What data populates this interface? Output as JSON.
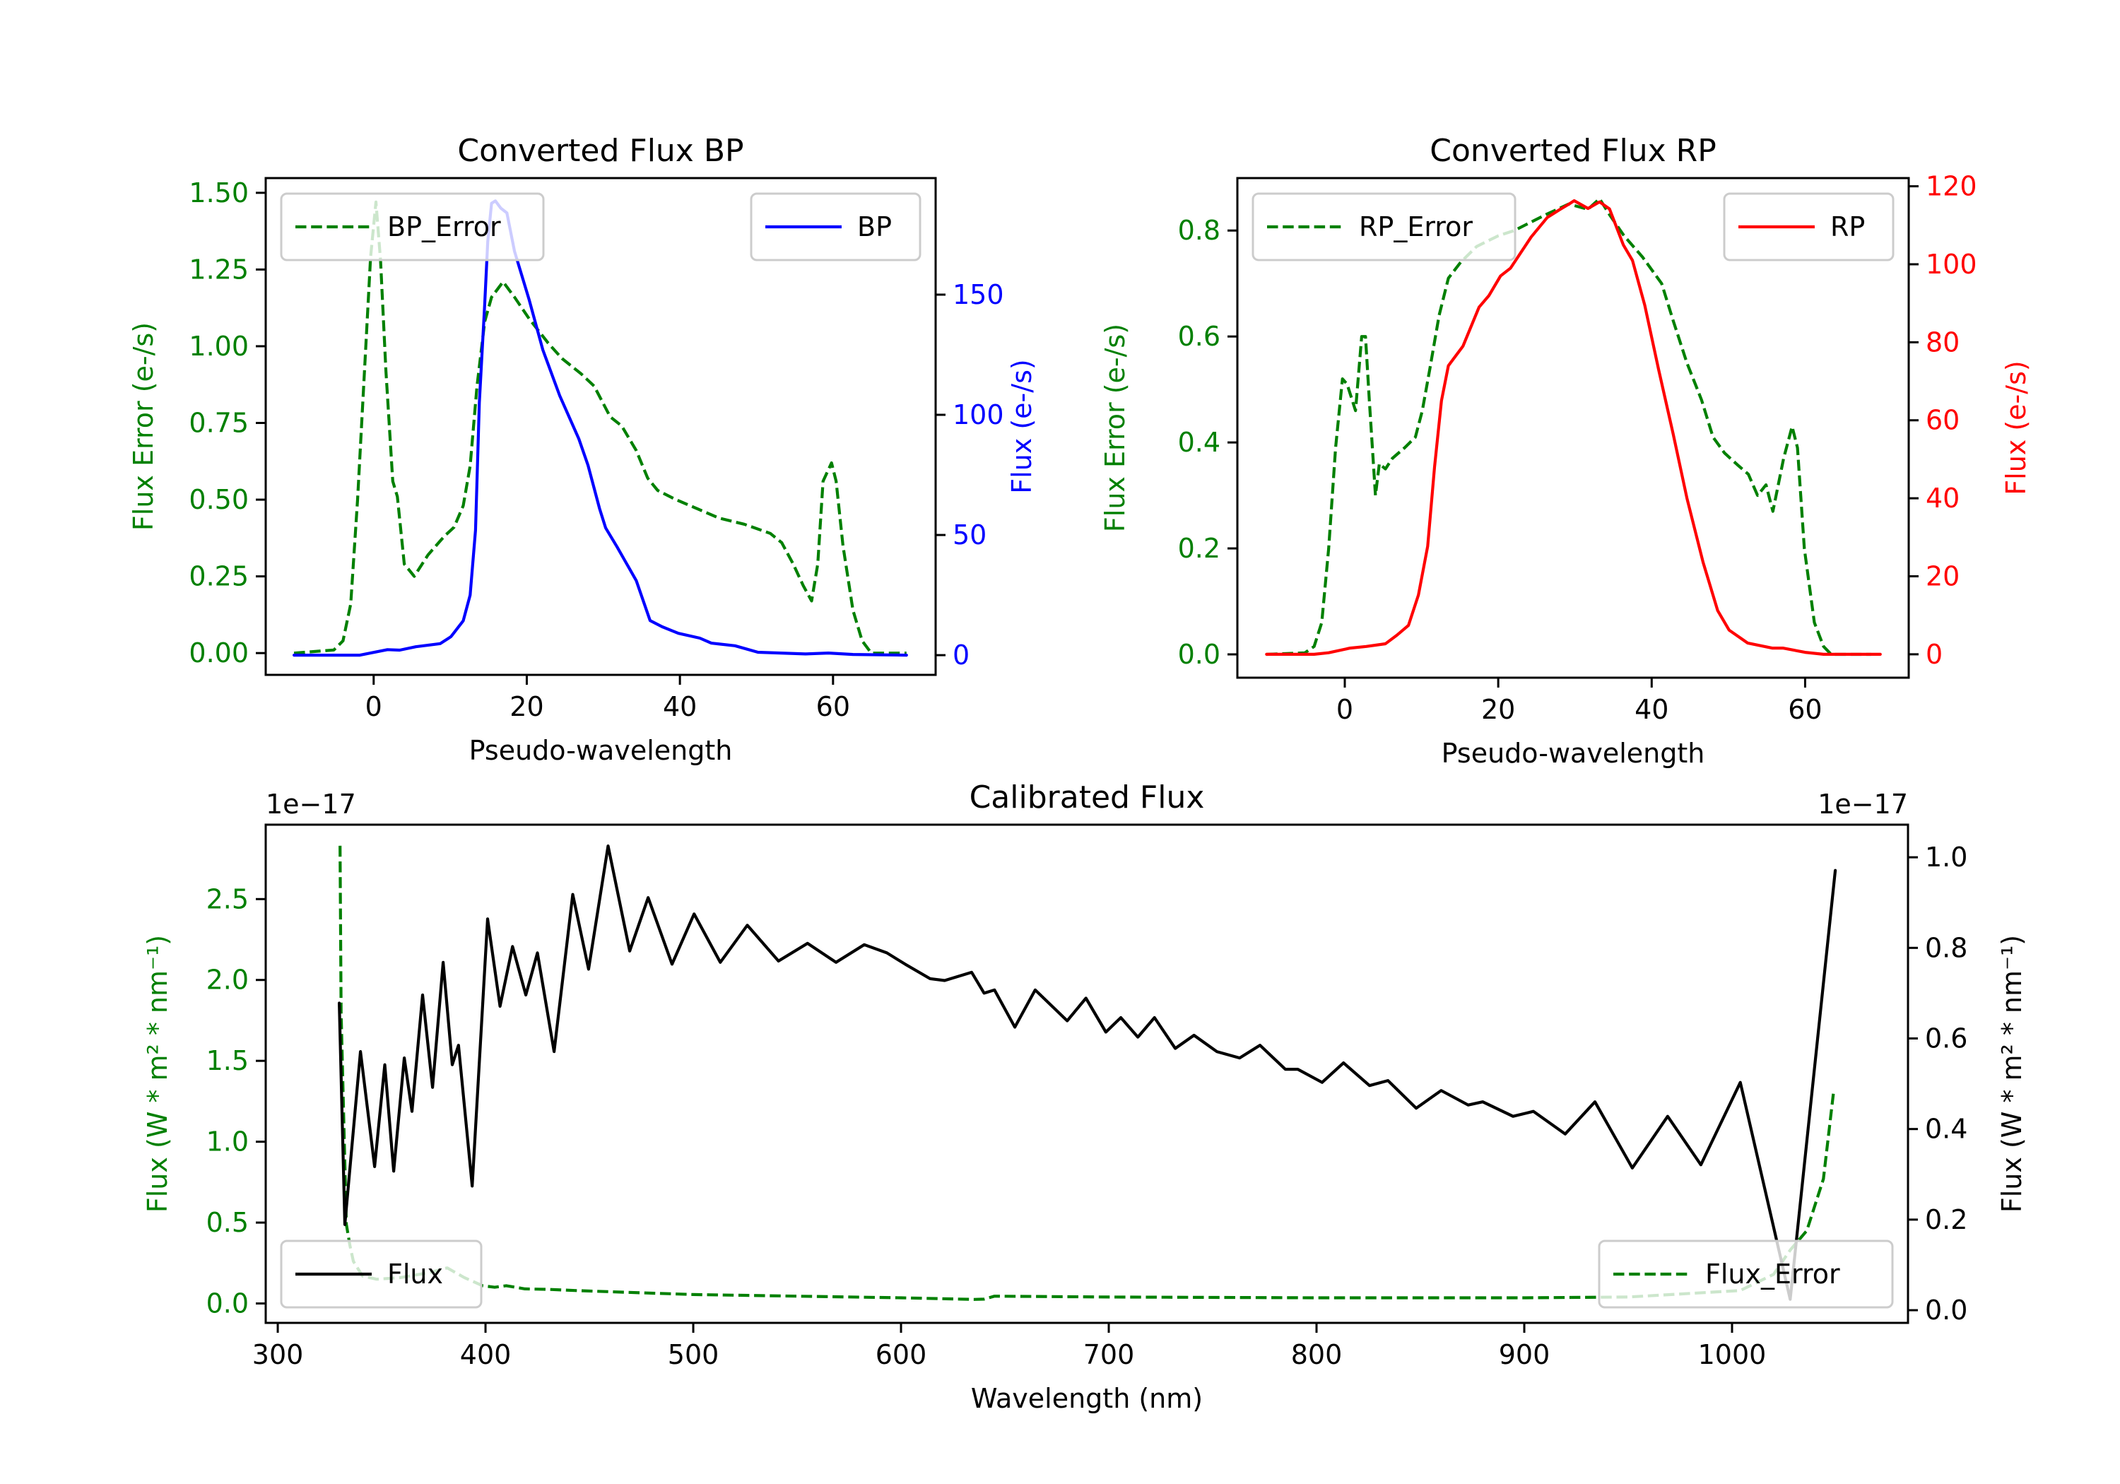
{
  "figure": {
    "background": "#ffffff"
  },
  "chart_data": [
    {
      "id": "bp",
      "type": "line",
      "title": "Converted Flux BP",
      "xlabel": "Pseudo-wavelength",
      "ylabel_left": "Flux Error (e-/s)",
      "ylabel_right": "Flux (e-/s)",
      "left_color": "#008000",
      "right_color": "#0000ff",
      "xlim": [
        -14.1,
        73.4
      ],
      "ylim_left": [
        -0.071,
        1.548
      ],
      "ylim_right": [
        -8.2,
        198.5
      ],
      "xticks": [
        0,
        20,
        40,
        60
      ],
      "xtick_labels": [
        "0",
        "20",
        "40",
        "60"
      ],
      "yticks_left": [
        0,
        0.25,
        0.5,
        0.75,
        1.0,
        1.25,
        1.5
      ],
      "ytick_labels_left": [
        "0.00",
        "0.25",
        "0.50",
        "0.75",
        "1.00",
        "1.25",
        "1.50"
      ],
      "yticks_right": [
        0,
        50,
        100,
        150
      ],
      "ytick_labels_right": [
        "0",
        "50",
        "100",
        "150"
      ],
      "legend_left": {
        "label": "BP_Error",
        "placement": "upper-left"
      },
      "legend_right": {
        "label": "BP",
        "placement": "upper-right"
      },
      "series": [
        {
          "name": "BP_Error",
          "axis": "left",
          "color": "#008000",
          "style": "dashed",
          "x": [
            -10.4,
            -5.2,
            -4.0,
            -3.0,
            -2.1,
            -1.2,
            -0.4,
            0.3,
            0.9,
            1.6,
            2.5,
            3.1,
            4.0,
            5.3,
            7.1,
            9.2,
            10.5,
            11.7,
            12.6,
            13.5,
            14.5,
            15.4,
            16.9,
            18.4,
            20.3,
            22.8,
            24.6,
            27.1,
            28.8,
            30.9,
            32.4,
            34.3,
            35.8,
            37.1,
            39.5,
            42.3,
            45.1,
            48.4,
            51.8,
            53.3,
            54.8,
            56.1,
            57.2,
            58.0,
            58.7,
            59.8,
            60.4,
            61.3,
            62.6,
            63.8,
            65.0,
            69.6
          ],
          "y": [
            0.0,
            0.01,
            0.04,
            0.16,
            0.5,
            0.92,
            1.29,
            1.47,
            1.28,
            0.92,
            0.56,
            0.51,
            0.29,
            0.25,
            0.32,
            0.38,
            0.41,
            0.48,
            0.61,
            0.87,
            1.08,
            1.16,
            1.21,
            1.16,
            1.09,
            1.01,
            0.96,
            0.91,
            0.87,
            0.77,
            0.74,
            0.66,
            0.57,
            0.53,
            0.5,
            0.47,
            0.44,
            0.42,
            0.39,
            0.36,
            0.29,
            0.22,
            0.17,
            0.29,
            0.56,
            0.62,
            0.56,
            0.35,
            0.14,
            0.04,
            0.0,
            0.0
          ]
        },
        {
          "name": "BP",
          "axis": "right",
          "color": "#0000ff",
          "style": "solid",
          "x": [
            -10.4,
            -1.8,
            1.8,
            3.4,
            5.5,
            8.7,
            10.1,
            11.7,
            12.6,
            13.3,
            13.8,
            14.5,
            14.9,
            15.4,
            15.9,
            16.6,
            17.4,
            18.4,
            20.3,
            22.1,
            24.3,
            26.8,
            28.0,
            29.5,
            30.3,
            31.8,
            34.3,
            36.1,
            37.7,
            39.8,
            42.6,
            44.1,
            47.2,
            50.2,
            56.4,
            59.4,
            62.6,
            69.6
          ],
          "y": [
            0,
            0,
            2.3,
            2.1,
            3.5,
            4.8,
            7.7,
            14.3,
            25,
            52,
            105,
            146,
            172,
            188,
            189,
            186,
            184,
            168,
            148,
            127,
            108,
            90,
            79,
            61,
            53,
            45,
            31,
            14.4,
            11.8,
            9.1,
            7.1,
            5.0,
            3.9,
            1.2,
            0.5,
            0.9,
            0.3,
            0
          ]
        }
      ]
    },
    {
      "id": "rp",
      "type": "line",
      "title": "Converted Flux RP",
      "xlabel": "Pseudo-wavelength",
      "ylabel_left": "Flux Error (e-/s)",
      "ylabel_right": "Flux (e-/s)",
      "left_color": "#008000",
      "right_color": "#ff0000",
      "xlim": [
        -14.0,
        73.5
      ],
      "ylim_left": [
        -0.044,
        0.899
      ],
      "ylim_right": [
        -6.0,
        122.1
      ],
      "xticks": [
        0,
        20,
        40,
        60
      ],
      "xtick_labels": [
        "0",
        "20",
        "40",
        "60"
      ],
      "yticks_left": [
        0,
        0.2,
        0.4,
        0.6,
        0.8
      ],
      "ytick_labels_left": [
        "0.0",
        "0.2",
        "0.4",
        "0.6",
        "0.8"
      ],
      "yticks_right": [
        0,
        20,
        40,
        60,
        80,
        100,
        120
      ],
      "ytick_labels_right": [
        "0",
        "20",
        "40",
        "60",
        "80",
        "100",
        "120"
      ],
      "legend_left": {
        "label": "RP_Error",
        "placement": "upper-left"
      },
      "legend_right": {
        "label": "RP",
        "placement": "upper-right"
      },
      "series": [
        {
          "name": "RP_Error",
          "axis": "left",
          "color": "#008000",
          "style": "dashed",
          "x": [
            -10.2,
            -5.2,
            -4.0,
            -3.0,
            -2.1,
            -1.2,
            -0.3,
            0.3,
            1.4,
            2.2,
            2.7,
            3.2,
            4.0,
            4.5,
            5.3,
            6.2,
            7.8,
            9.2,
            10.1,
            11.1,
            12.3,
            13.5,
            15.1,
            17.2,
            20.0,
            22.1,
            26.2,
            29.2,
            31.7,
            33.2,
            34.5,
            36.4,
            38.8,
            41.3,
            42.8,
            44.6,
            46.5,
            48.0,
            49.5,
            51.4,
            52.6,
            53.8,
            54.9,
            55.8,
            57.2,
            58.3,
            59.0,
            59.9,
            61.2,
            62.4,
            63.4,
            68.6
          ],
          "y": [
            0.0,
            0.003,
            0.015,
            0.06,
            0.2,
            0.39,
            0.52,
            0.51,
            0.46,
            0.6,
            0.6,
            0.48,
            0.3,
            0.36,
            0.35,
            0.37,
            0.39,
            0.41,
            0.46,
            0.54,
            0.64,
            0.71,
            0.74,
            0.77,
            0.79,
            0.8,
            0.83,
            0.85,
            0.84,
            0.86,
            0.83,
            0.79,
            0.75,
            0.7,
            0.63,
            0.55,
            0.48,
            0.41,
            0.38,
            0.355,
            0.34,
            0.3,
            0.32,
            0.27,
            0.37,
            0.43,
            0.39,
            0.2,
            0.06,
            0.015,
            0.0,
            0.0
          ]
        },
        {
          "name": "RP",
          "axis": "right",
          "color": "#ff0000",
          "style": "solid",
          "x": [
            -10.2,
            -4.0,
            -2.1,
            0.7,
            2.8,
            5.3,
            6.8,
            8.3,
            9.6,
            10.8,
            11.7,
            12.6,
            13.5,
            15.4,
            17.5,
            18.8,
            20.3,
            21.6,
            24.3,
            26.4,
            28.0,
            29.2,
            29.9,
            31.7,
            33.2,
            34.5,
            36.3,
            37.5,
            39.1,
            40.9,
            42.8,
            44.6,
            46.7,
            48.6,
            50.1,
            52.5,
            55.7,
            57.1,
            60.0,
            62.4,
            69.8
          ],
          "y": [
            0,
            0,
            0.4,
            1.6,
            2.0,
            2.7,
            4.9,
            7.4,
            15.2,
            27.7,
            48,
            65,
            74,
            79,
            89,
            92,
            97,
            99,
            107,
            112,
            114,
            115.4,
            116.3,
            114.3,
            116,
            114.2,
            105,
            101,
            89.5,
            73,
            56.5,
            40,
            23.6,
            11.2,
            6.2,
            2.9,
            1.6,
            1.6,
            0.5,
            0,
            0
          ]
        }
      ]
    },
    {
      "id": "calibrated",
      "type": "line",
      "title": "Calibrated Flux",
      "xlabel": "Wavelength (nm)",
      "ylabel_left": "Flux (W * m² * nm⁻¹)",
      "ylabel_right": "Flux (W * m² * nm⁻¹)",
      "left_color": "#008000",
      "right_color": "#000000",
      "offset_left": "1e−17",
      "offset_right": "1e−17",
      "xlim": [
        294.2,
        1084.7
      ],
      "ylim_left": [
        -0.12,
        2.96
      ],
      "ylim_right": [
        -0.028,
        1.072
      ],
      "xticks": [
        300,
        400,
        500,
        600,
        700,
        800,
        900,
        1000
      ],
      "xtick_labels": [
        "300",
        "400",
        "500",
        "600",
        "700",
        "800",
        "900",
        "1000"
      ],
      "yticks_left": [
        0,
        0.5,
        1.0,
        1.5,
        2.0,
        2.5
      ],
      "ytick_labels_left": [
        "0.0",
        "0.5",
        "1.0",
        "1.5",
        "2.0",
        "2.5"
      ],
      "yticks_right": [
        0,
        0.2,
        0.4,
        0.6,
        0.8,
        1.0
      ],
      "ytick_labels_right": [
        "0.0",
        "0.2",
        "0.4",
        "0.6",
        "0.8",
        "1.0"
      ],
      "legend_left": {
        "label": "Flux_Error",
        "placement": "lower-right"
      },
      "legend_right": {
        "label": "Flux",
        "placement": "lower-left"
      },
      "series": [
        {
          "name": "Flux_Error",
          "axis": "left",
          "color": "#008000",
          "style": "dashed",
          "x": [
            330.0,
            330.5,
            333.0,
            334.7,
            336.4,
            340.8,
            347.6,
            359.0,
            372.8,
            381.6,
            389.8,
            398.6,
            404.4,
            410.0,
            419.0,
            430.6,
            443.0,
            465.6,
            500.0,
            550.0,
            600.0,
            635.0,
            640.0,
            645.0,
            700.0,
            800.0,
            900.0,
            950.0,
            1004.0,
            1020.0,
            1028.0,
            1036.0,
            1044.0,
            1049.0
          ],
          "y": [
            2.83,
            1.8,
            0.49,
            0.36,
            0.26,
            0.17,
            0.15,
            0.16,
            0.19,
            0.22,
            0.16,
            0.11,
            0.1,
            0.11,
            0.09,
            0.087,
            0.08,
            0.07,
            0.055,
            0.045,
            0.035,
            0.025,
            0.027,
            0.045,
            0.04,
            0.035,
            0.035,
            0.04,
            0.08,
            0.18,
            0.33,
            0.45,
            0.77,
            1.32
          ]
        },
        {
          "name": "Flux",
          "axis": "right",
          "color": "#000000",
          "style": "solid",
          "x": [
            329.6,
            332.3,
            339.8,
            346.6,
            351.5,
            355.8,
            360.9,
            364.6,
            369.7,
            374.5,
            379.6,
            384.0,
            387.0,
            393.6,
            401.0,
            407.0,
            413.0,
            419.4,
            425.0,
            433.0,
            442.0,
            449.6,
            459.0,
            469.4,
            478.3,
            489.8,
            500.4,
            513.0,
            526.0,
            541.0,
            555.0,
            568.7,
            582.3,
            593.2,
            602.0,
            614.0,
            621.0,
            634.0,
            640.0,
            645.0,
            654.8,
            664.6,
            680.0,
            689.0,
            698.6,
            705.8,
            714.0,
            722.0,
            732.0,
            741.0,
            752.0,
            763.0,
            772.8,
            785.0,
            791.0,
            802.7,
            813.0,
            825.5,
            834.4,
            848.0,
            860.0,
            873.0,
            880.0,
            894.6,
            904.4,
            919.7,
            934.0,
            952.0,
            969.0,
            985.0,
            1004.0,
            1028.0,
            1049.7
          ],
          "y": [
            0.678,
            0.189,
            0.571,
            0.317,
            0.542,
            0.307,
            0.557,
            0.439,
            0.696,
            0.492,
            0.768,
            0.542,
            0.585,
            0.274,
            0.864,
            0.671,
            0.803,
            0.696,
            0.789,
            0.571,
            0.918,
            0.753,
            1.025,
            0.793,
            0.911,
            0.764,
            0.875,
            0.768,
            0.85,
            0.771,
            0.81,
            0.768,
            0.807,
            0.789,
            0.764,
            0.732,
            0.728,
            0.746,
            0.7,
            0.707,
            0.625,
            0.707,
            0.639,
            0.689,
            0.614,
            0.646,
            0.603,
            0.646,
            0.578,
            0.607,
            0.571,
            0.557,
            0.585,
            0.532,
            0.532,
            0.503,
            0.546,
            0.496,
            0.507,
            0.446,
            0.485,
            0.453,
            0.46,
            0.428,
            0.439,
            0.389,
            0.46,
            0.314,
            0.428,
            0.321,
            0.503,
            0.024,
            0.971
          ]
        }
      ]
    }
  ]
}
